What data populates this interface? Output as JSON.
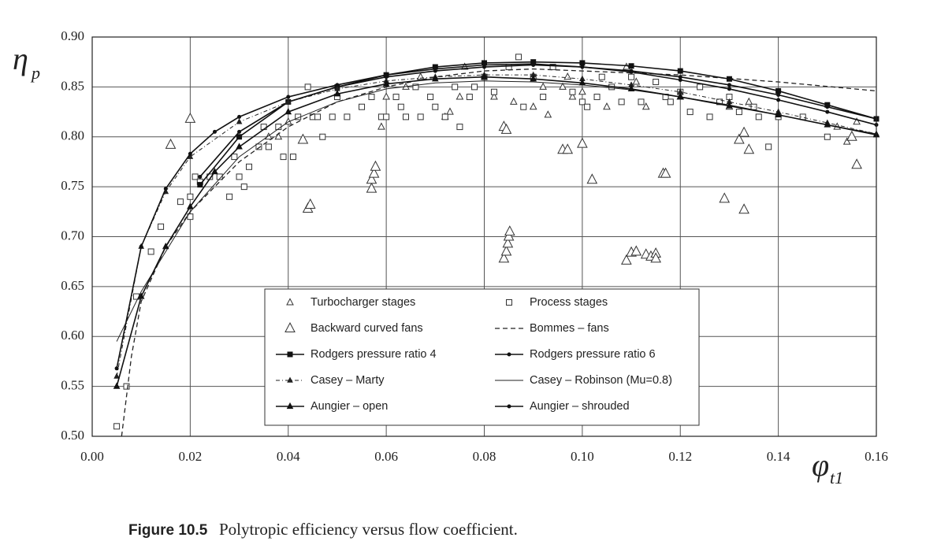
{
  "chart_data": {
    "type": "line",
    "y_label": {
      "symbol": "η",
      "subscript": "p"
    },
    "x_label": {
      "symbol": "φ",
      "subscript": "t1"
    },
    "xlim": [
      0,
      0.16
    ],
    "ylim": [
      0.5,
      0.9
    ],
    "xticks": [
      {
        "value": 0,
        "label": "0.00"
      },
      {
        "value": 0.02,
        "label": "0.02"
      },
      {
        "value": 0.04,
        "label": "0.04"
      },
      {
        "value": 0.06,
        "label": "0.06"
      },
      {
        "value": 0.08,
        "label": "0.08"
      },
      {
        "value": 0.1,
        "label": "0.10"
      },
      {
        "value": 0.12,
        "label": "0.12"
      },
      {
        "value": 0.14,
        "label": "0.14"
      },
      {
        "value": 0.16,
        "label": "0.16"
      }
    ],
    "yticks": [
      {
        "value": 0.5,
        "label": "0.50"
      },
      {
        "value": 0.55,
        "label": "0.55"
      },
      {
        "value": 0.6,
        "label": "0.60"
      },
      {
        "value": 0.65,
        "label": "0.65"
      },
      {
        "value": 0.7,
        "label": "0.70"
      },
      {
        "value": 0.75,
        "label": "0.75"
      },
      {
        "value": 0.8,
        "label": "0.80"
      },
      {
        "value": 0.85,
        "label": "0.85"
      },
      {
        "value": 0.9,
        "label": "0.90"
      }
    ],
    "grid": true,
    "series": [
      {
        "name": "Turbocharger stages",
        "kind": "scatter",
        "marker": "triangle",
        "marker_size": 4,
        "color": "#333333",
        "x": [
          0.036,
          0.038,
          0.04,
          0.059,
          0.06,
          0.064,
          0.067,
          0.072,
          0.073,
          0.075,
          0.076,
          0.082,
          0.086,
          0.09,
          0.092,
          0.093,
          0.096,
          0.097,
          0.098,
          0.1,
          0.105,
          0.109,
          0.111,
          0.113,
          0.12,
          0.13,
          0.134,
          0.152,
          0.154,
          0.156
        ],
        "values": [
          0.8,
          0.8,
          0.815,
          0.81,
          0.84,
          0.85,
          0.86,
          0.82,
          0.825,
          0.84,
          0.87,
          0.84,
          0.835,
          0.83,
          0.85,
          0.822,
          0.85,
          0.86,
          0.84,
          0.845,
          0.83,
          0.87,
          0.855,
          0.83,
          0.84,
          0.83,
          0.835,
          0.81,
          0.795,
          0.815
        ]
      },
      {
        "name": "Process stages",
        "kind": "scatter",
        "marker": "square",
        "marker_size": 3.5,
        "color": "#333333",
        "x": [
          0.005,
          0.007,
          0.009,
          0.012,
          0.014,
          0.018,
          0.02,
          0.02,
          0.021,
          0.022,
          0.024,
          0.026,
          0.028,
          0.029,
          0.03,
          0.031,
          0.032,
          0.034,
          0.035,
          0.036,
          0.038,
          0.039,
          0.041,
          0.042,
          0.044,
          0.045,
          0.046,
          0.047,
          0.049,
          0.05,
          0.052,
          0.055,
          0.057,
          0.059,
          0.06,
          0.062,
          0.063,
          0.064,
          0.066,
          0.067,
          0.069,
          0.07,
          0.072,
          0.074,
          0.075,
          0.077,
          0.078,
          0.08,
          0.082,
          0.085,
          0.087,
          0.088,
          0.09,
          0.092,
          0.094,
          0.098,
          0.1,
          0.101,
          0.103,
          0.104,
          0.106,
          0.108,
          0.11,
          0.112,
          0.115,
          0.117,
          0.118,
          0.12,
          0.122,
          0.124,
          0.126,
          0.128,
          0.13,
          0.132,
          0.135,
          0.136,
          0.138,
          0.14,
          0.145,
          0.15
        ],
        "values": [
          0.51,
          0.55,
          0.64,
          0.685,
          0.71,
          0.735,
          0.72,
          0.74,
          0.76,
          0.755,
          0.76,
          0.76,
          0.74,
          0.78,
          0.76,
          0.75,
          0.77,
          0.79,
          0.81,
          0.79,
          0.81,
          0.78,
          0.78,
          0.82,
          0.85,
          0.82,
          0.82,
          0.8,
          0.82,
          0.84,
          0.82,
          0.83,
          0.84,
          0.82,
          0.82,
          0.84,
          0.83,
          0.82,
          0.85,
          0.82,
          0.84,
          0.83,
          0.82,
          0.85,
          0.81,
          0.84,
          0.85,
          0.86,
          0.845,
          0.87,
          0.88,
          0.83,
          0.86,
          0.84,
          0.87,
          0.845,
          0.835,
          0.83,
          0.84,
          0.86,
          0.85,
          0.835,
          0.86,
          0.835,
          0.855,
          0.84,
          0.835,
          0.845,
          0.825,
          0.85,
          0.82,
          0.835,
          0.84,
          0.825,
          0.83,
          0.82,
          0.79,
          0.82,
          0.82,
          0.8
        ]
      },
      {
        "name": "Backward curved fans",
        "kind": "scatter",
        "marker": "triangle",
        "marker_size": 6,
        "color": "#333333",
        "x": [
          0.016,
          0.02,
          0.043,
          0.044,
          0.0445,
          0.057,
          0.057,
          0.0575,
          0.0578,
          0.084,
          0.0845,
          0.0848,
          0.085,
          0.0852,
          0.084,
          0.0845,
          0.096,
          0.097,
          0.1,
          0.102,
          0.109,
          0.11,
          0.111,
          0.113,
          0.114,
          0.115,
          0.115,
          0.1165,
          0.117,
          0.129,
          0.132,
          0.133,
          0.133,
          0.134,
          0.156,
          0.155
        ],
        "values": [
          0.792,
          0.818,
          0.797,
          0.728,
          0.732,
          0.748,
          0.757,
          0.763,
          0.77,
          0.678,
          0.685,
          0.693,
          0.7,
          0.705,
          0.81,
          0.807,
          0.787,
          0.787,
          0.793,
          0.757,
          0.676,
          0.684,
          0.685,
          0.682,
          0.68,
          0.683,
          0.678,
          0.763,
          0.763,
          0.738,
          0.797,
          0.804,
          0.727,
          0.787,
          0.772,
          0.8
        ]
      },
      {
        "name": "Bommes – fans",
        "kind": "line",
        "dash": "6,4",
        "width": 1.3,
        "marker": "none",
        "color": "#222222",
        "x": [
          0.006,
          0.008,
          0.01,
          0.015,
          0.02,
          0.03,
          0.04,
          0.05,
          0.06,
          0.07,
          0.08,
          0.09,
          0.1,
          0.12,
          0.14,
          0.16
        ],
        "values": [
          0.5,
          0.58,
          0.635,
          0.69,
          0.725,
          0.775,
          0.81,
          0.835,
          0.85,
          0.86,
          0.866,
          0.868,
          0.866,
          0.862,
          0.855,
          0.846
        ]
      },
      {
        "name": "Rodgers pressure ratio 4",
        "kind": "line",
        "dash": "none",
        "width": 1.6,
        "marker": "square",
        "marker_size": 3,
        "color": "#111111",
        "x": [
          0.022,
          0.03,
          0.04,
          0.05,
          0.06,
          0.07,
          0.08,
          0.09,
          0.1,
          0.11,
          0.12,
          0.13,
          0.14,
          0.15,
          0.16
        ],
        "values": [
          0.752,
          0.8,
          0.835,
          0.85,
          0.862,
          0.87,
          0.874,
          0.875,
          0.874,
          0.871,
          0.866,
          0.858,
          0.846,
          0.832,
          0.818
        ]
      },
      {
        "name": "Rodgers pressure ratio 6",
        "kind": "line",
        "dash": "none",
        "width": 1.6,
        "marker": "dot",
        "marker_size": 2.5,
        "color": "#111111",
        "x": [
          0.022,
          0.03,
          0.04,
          0.05,
          0.06,
          0.07,
          0.08,
          0.09,
          0.1,
          0.11,
          0.12,
          0.13,
          0.14,
          0.15,
          0.16
        ],
        "values": [
          0.76,
          0.805,
          0.835,
          0.85,
          0.86,
          0.866,
          0.87,
          0.872,
          0.87,
          0.866,
          0.86,
          0.852,
          0.842,
          0.83,
          0.818
        ]
      },
      {
        "name": "Casey – Marty",
        "kind": "line",
        "dash": "5,3,1,3",
        "width": 1,
        "marker": "triangle-filled",
        "marker_size": 3,
        "color": "#222222",
        "x": [
          0.005,
          0.01,
          0.015,
          0.02,
          0.03,
          0.04,
          0.05,
          0.06,
          0.07,
          0.08,
          0.09,
          0.1,
          0.11,
          0.12,
          0.13,
          0.14,
          0.15,
          0.16
        ],
        "values": [
          0.56,
          0.69,
          0.745,
          0.78,
          0.815,
          0.835,
          0.848,
          0.856,
          0.86,
          0.862,
          0.862,
          0.858,
          0.852,
          0.845,
          0.835,
          0.825,
          0.814,
          0.803
        ]
      },
      {
        "name": "Casey – Robinson (Mu=0.8)",
        "kind": "line",
        "dash": "none",
        "width": 1,
        "marker": "none",
        "color": "#222222",
        "x": [
          0.005,
          0.01,
          0.015,
          0.02,
          0.03,
          0.04,
          0.05,
          0.06,
          0.07,
          0.08,
          0.09,
          0.1,
          0.11,
          0.12,
          0.13,
          0.14,
          0.15,
          0.16
        ],
        "values": [
          0.595,
          0.645,
          0.685,
          0.725,
          0.78,
          0.815,
          0.835,
          0.848,
          0.854,
          0.856,
          0.855,
          0.852,
          0.847,
          0.84,
          0.832,
          0.822,
          0.812,
          0.803
        ]
      },
      {
        "name": "Aungier – open",
        "kind": "line",
        "dash": "none",
        "width": 1.6,
        "marker": "triangle-filled",
        "marker_size": 3.5,
        "color": "#111111",
        "x": [
          0.005,
          0.01,
          0.015,
          0.02,
          0.025,
          0.03,
          0.04,
          0.05,
          0.06,
          0.07,
          0.08,
          0.09,
          0.1,
          0.11,
          0.12,
          0.13,
          0.14,
          0.15,
          0.16
        ],
        "values": [
          0.55,
          0.64,
          0.69,
          0.73,
          0.765,
          0.79,
          0.825,
          0.843,
          0.853,
          0.858,
          0.86,
          0.858,
          0.854,
          0.848,
          0.84,
          0.831,
          0.822,
          0.812,
          0.802
        ]
      },
      {
        "name": "Aungier – shrouded",
        "kind": "line",
        "dash": "none",
        "width": 1.6,
        "marker": "dot",
        "marker_size": 2.5,
        "color": "#111111",
        "x": [
          0.005,
          0.01,
          0.015,
          0.02,
          0.025,
          0.03,
          0.04,
          0.05,
          0.06,
          0.07,
          0.08,
          0.09,
          0.1,
          0.11,
          0.12,
          0.13,
          0.14,
          0.15,
          0.16
        ],
        "values": [
          0.568,
          0.69,
          0.748,
          0.783,
          0.805,
          0.82,
          0.84,
          0.852,
          0.862,
          0.868,
          0.872,
          0.873,
          0.87,
          0.865,
          0.857,
          0.848,
          0.837,
          0.825,
          0.812
        ]
      }
    ]
  },
  "caption": {
    "label": "Figure 10.5",
    "text": "Polytropic efficiency versus flow coefficient."
  }
}
